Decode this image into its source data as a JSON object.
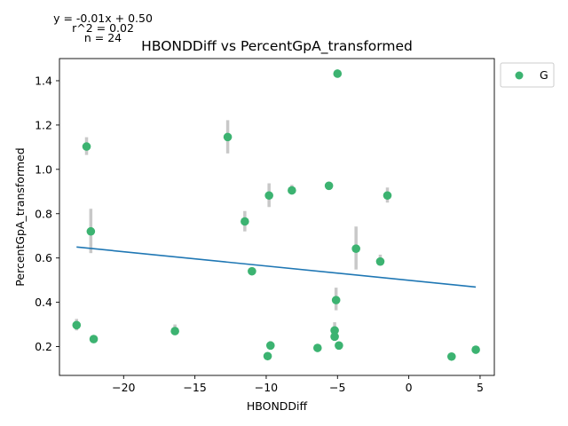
{
  "chart_data": {
    "type": "scatter",
    "title": "HBONDDiff vs PercentGpA_transformed",
    "xlabel": "HBONDDiff",
    "ylabel": "PercentGpA_transformed",
    "xlim": [
      -24.5,
      6.0
    ],
    "ylim": [
      0.07,
      1.5
    ],
    "xticks": [
      -20,
      -15,
      -10,
      -5,
      0,
      5
    ],
    "xtick_labels": [
      "−20",
      "−15",
      "−10",
      "−5",
      "0",
      "5"
    ],
    "yticks": [
      0.2,
      0.4,
      0.6,
      0.8,
      1.0,
      1.2,
      1.4
    ],
    "ytick_labels": [
      "0.2",
      "0.4",
      "0.6",
      "0.8",
      "1.0",
      "1.2",
      "1.4"
    ],
    "grid": false,
    "legend": {
      "position": "outside-top-right",
      "entries": [
        "G"
      ]
    },
    "annotations": {
      "equation": "y = -0.01x + 0.50",
      "r2": "r^2 = 0.02",
      "n": "n = 24"
    },
    "fit_line": {
      "slope": -0.00645,
      "intercept": 0.4993,
      "x_range": [
        -23.3,
        4.7
      ],
      "color": "#1f77b4"
    },
    "series": [
      {
        "name": "G",
        "color": "#3cb371",
        "points": [
          {
            "x": -23.3,
            "y": 0.297,
            "err": [
              0.273,
              0.325
            ]
          },
          {
            "x": -22.6,
            "y": 1.103,
            "err": [
              1.065,
              1.145
            ]
          },
          {
            "x": -22.3,
            "y": 0.72,
            "err": [
              0.622,
              0.822
            ]
          },
          {
            "x": -22.1,
            "y": 0.234,
            "err": [
              0.226,
              0.24
            ]
          },
          {
            "x": -16.4,
            "y": 0.27,
            "err": [
              0.252,
              0.3
            ]
          },
          {
            "x": -12.7,
            "y": 1.146,
            "err": [
              1.072,
              1.222
            ]
          },
          {
            "x": -11.5,
            "y": 0.765,
            "err": [
              0.72,
              0.812
            ]
          },
          {
            "x": -11.0,
            "y": 0.54,
            "err": [
              0.53,
              0.55
            ]
          },
          {
            "x": -9.9,
            "y": 0.157,
            "err": [
              0.15,
              0.163
            ]
          },
          {
            "x": -9.8,
            "y": 0.882,
            "err": [
              0.83,
              0.937
            ]
          },
          {
            "x": -9.7,
            "y": 0.205,
            "err": [
              0.196,
              0.225
            ]
          },
          {
            "x": -8.2,
            "y": 0.905,
            "err": [
              0.893,
              0.93
            ]
          },
          {
            "x": -6.4,
            "y": 0.194,
            "err": [
              0.188,
              0.2
            ]
          },
          {
            "x": -5.6,
            "y": 0.926,
            "err": [
              0.916,
              0.94
            ]
          },
          {
            "x": -5.2,
            "y": 0.273,
            "err": [
              0.232,
              0.31
            ]
          },
          {
            "x": -5.2,
            "y": 0.245,
            "err": [
              0.232,
              0.258
            ]
          },
          {
            "x": -5.1,
            "y": 0.41,
            "err": [
              0.364,
              0.466
            ]
          },
          {
            "x": -5.0,
            "y": 1.432,
            "err": [
              1.426,
              1.438
            ]
          },
          {
            "x": -4.9,
            "y": 0.205,
            "err": [
              0.198,
              0.212
            ]
          },
          {
            "x": -3.7,
            "y": 0.642,
            "err": [
              0.548,
              0.742
            ]
          },
          {
            "x": -2.0,
            "y": 0.584,
            "err": [
              0.565,
              0.615
            ]
          },
          {
            "x": -1.5,
            "y": 0.882,
            "err": [
              0.85,
              0.918
            ]
          },
          {
            "x": 3.0,
            "y": 0.155,
            "err": [
              0.148,
              0.162
            ]
          },
          {
            "x": 4.7,
            "y": 0.186,
            "err": [
              0.176,
              0.196
            ]
          }
        ]
      }
    ]
  }
}
